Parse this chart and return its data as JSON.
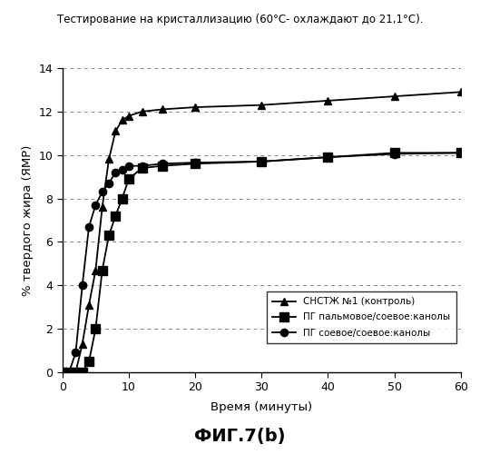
{
  "title": "Тестирование на кристаллизацию (60°С- охлаждают до 21,1°С).",
  "xlabel": "Время (минуты)",
  "ylabel": "% твердого жира (ЯМР)",
  "fig_label": "ФИГ.7(b)",
  "xlim": [
    0,
    60
  ],
  "ylim": [
    0,
    14
  ],
  "yticks": [
    0,
    2,
    4,
    6,
    8,
    10,
    12,
    14
  ],
  "xticks": [
    0,
    10,
    20,
    30,
    40,
    50,
    60
  ],
  "series1": {
    "label": "СНСТЖ №1 (контроль)",
    "x": [
      0,
      1,
      2,
      3,
      4,
      5,
      6,
      7,
      8,
      9,
      10,
      12,
      15,
      20,
      30,
      40,
      50,
      60
    ],
    "y": [
      0,
      0,
      0,
      1.3,
      3.1,
      4.7,
      7.6,
      9.8,
      11.1,
      11.6,
      11.8,
      12.0,
      12.1,
      12.2,
      12.3,
      12.5,
      12.7,
      12.9
    ],
    "marker": "^",
    "color": "#000000",
    "linestyle": "-"
  },
  "series2": {
    "label": "ПГ пальмовое/соевое:канолы",
    "x": [
      0,
      1,
      2,
      3,
      4,
      5,
      6,
      7,
      8,
      9,
      10,
      12,
      15,
      20,
      30,
      40,
      50,
      60
    ],
    "y": [
      0,
      0,
      0,
      0,
      0.5,
      2.0,
      4.7,
      6.3,
      7.2,
      8.0,
      8.9,
      9.4,
      9.5,
      9.6,
      9.7,
      9.9,
      10.1,
      10.1
    ],
    "marker": "s",
    "color": "#000000",
    "linestyle": "-"
  },
  "series3": {
    "label": "ПГ соевое/соевое:канолы",
    "x": [
      0,
      1,
      2,
      3,
      4,
      5,
      6,
      7,
      8,
      9,
      10,
      12,
      15,
      20,
      30,
      40,
      50,
      60
    ],
    "y": [
      0,
      0,
      0.9,
      4.0,
      6.7,
      7.7,
      8.3,
      8.7,
      9.2,
      9.3,
      9.5,
      9.5,
      9.6,
      9.65,
      9.7,
      9.9,
      10.05,
      10.1
    ],
    "marker": "o",
    "color": "#000000",
    "linestyle": "-"
  },
  "background_color": "#ffffff",
  "grid_color": "#888888",
  "legend_fontsize": 7.5,
  "title_fontsize": 8.5,
  "label_fontsize": 9.5,
  "tick_fontsize": 9,
  "fig_label_fontsize": 14
}
